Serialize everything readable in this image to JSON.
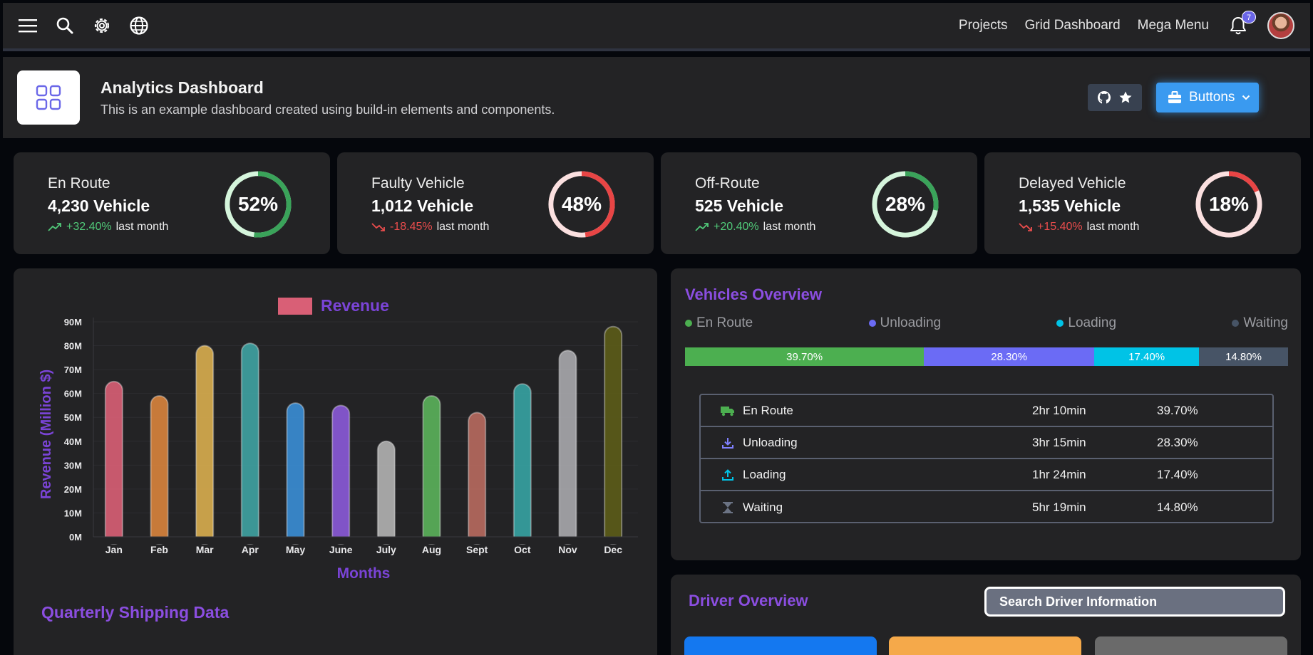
{
  "nav": {
    "links": [
      "Projects",
      "Grid Dashboard",
      "Mega Menu"
    ],
    "notification_count": "7"
  },
  "header": {
    "title": "Analytics Dashboard",
    "subtitle": "This is an example dashboard created using build-in elements and components.",
    "dropdown_label": "Buttons"
  },
  "stats": [
    {
      "title": "En Route",
      "value": "4,230 Vehicle",
      "trend": "+32.40%",
      "trend_dir": "up",
      "suffix": "last month",
      "percent": "52%",
      "fraction": 0.52,
      "ring_color": "#3aa35a",
      "track_color": "#d5f5dc"
    },
    {
      "title": "Faulty Vehicle",
      "value": "1,012 Vehicle",
      "trend": "-18.45%",
      "trend_dir": "down",
      "suffix": "last month",
      "percent": "48%",
      "fraction": 0.48,
      "ring_color": "#e84545",
      "track_color": "#fbe0e0"
    },
    {
      "title": "Off-Route",
      "value": "525 Vehicle",
      "trend": "+20.40%",
      "trend_dir": "up",
      "suffix": "last month",
      "percent": "28%",
      "fraction": 0.28,
      "ring_color": "#3aa35a",
      "track_color": "#d5f5dc"
    },
    {
      "title": "Delayed Vehicle",
      "value": "1,535 Vehicle",
      "trend": "+15.40%",
      "trend_dir": "down",
      "suffix": "last month",
      "percent": "18%",
      "fraction": 0.18,
      "ring_color": "#e84545",
      "track_color": "#fbe0e0"
    }
  ],
  "chart_data": {
    "type": "bar",
    "title": "",
    "legend": "Revenue",
    "legend_color": "#d95f76",
    "xlabel": "Months",
    "ylabel": "Revenue (Million $)",
    "ylim": [
      0,
      90
    ],
    "yticks": [
      "0M",
      "10M",
      "20M",
      "30M",
      "40M",
      "50M",
      "60M",
      "70M",
      "80M",
      "90M"
    ],
    "categories": [
      "Jan",
      "Feb",
      "Mar",
      "Apr",
      "May",
      "June",
      "July",
      "Aug",
      "Sept",
      "Oct",
      "Nov",
      "Dec"
    ],
    "values": [
      65,
      59,
      80,
      81,
      56,
      55,
      40,
      59,
      52,
      64,
      78,
      88
    ],
    "colors": [
      "#d95f76",
      "#d9843d",
      "#d9ae4f",
      "#3fa3a3",
      "#3a8ed6",
      "#8b5ad9",
      "#b3b3b3",
      "#5bb35b",
      "#b86a5f",
      "#36a3a3",
      "#a8a9ad",
      "#5c5c18"
    ]
  },
  "quarterly_title": "Quarterly Shipping Data",
  "vehicles": {
    "title": "Vehicles Overview",
    "legend": [
      {
        "label": "En Route",
        "color": "#4caf50"
      },
      {
        "label": "Unloading",
        "color": "#6b6bf5"
      },
      {
        "label": "Loading",
        "color": "#00c3e6"
      },
      {
        "label": "Waiting",
        "color": "#475466"
      }
    ],
    "bar": [
      {
        "label": "39.70%",
        "value": 39.7,
        "color": "#4caf50"
      },
      {
        "label": "28.30%",
        "value": 28.3,
        "color": "#6b6bf5"
      },
      {
        "label": "17.40%",
        "value": 17.4,
        "color": "#00c3e6"
      },
      {
        "label": "14.80%",
        "value": 14.8,
        "color": "#475466"
      }
    ],
    "rows": [
      {
        "icon": "truck-icon",
        "name": "En Route",
        "time": "2hr 10min",
        "pct": "39.70%"
      },
      {
        "icon": "download-icon",
        "name": "Unloading",
        "time": "3hr 15min",
        "pct": "28.30%"
      },
      {
        "icon": "upload-icon",
        "name": "Loading",
        "time": "1hr 24min",
        "pct": "17.40%"
      },
      {
        "icon": "hourglass-icon",
        "name": "Waiting",
        "time": "5hr 19min",
        "pct": "14.80%"
      }
    ]
  },
  "driver": {
    "title": "Driver Overview",
    "search_placeholder": "Search Driver Information",
    "card_colors": [
      "#1478f0",
      "#f5a94a",
      "#6a6a6a"
    ]
  }
}
